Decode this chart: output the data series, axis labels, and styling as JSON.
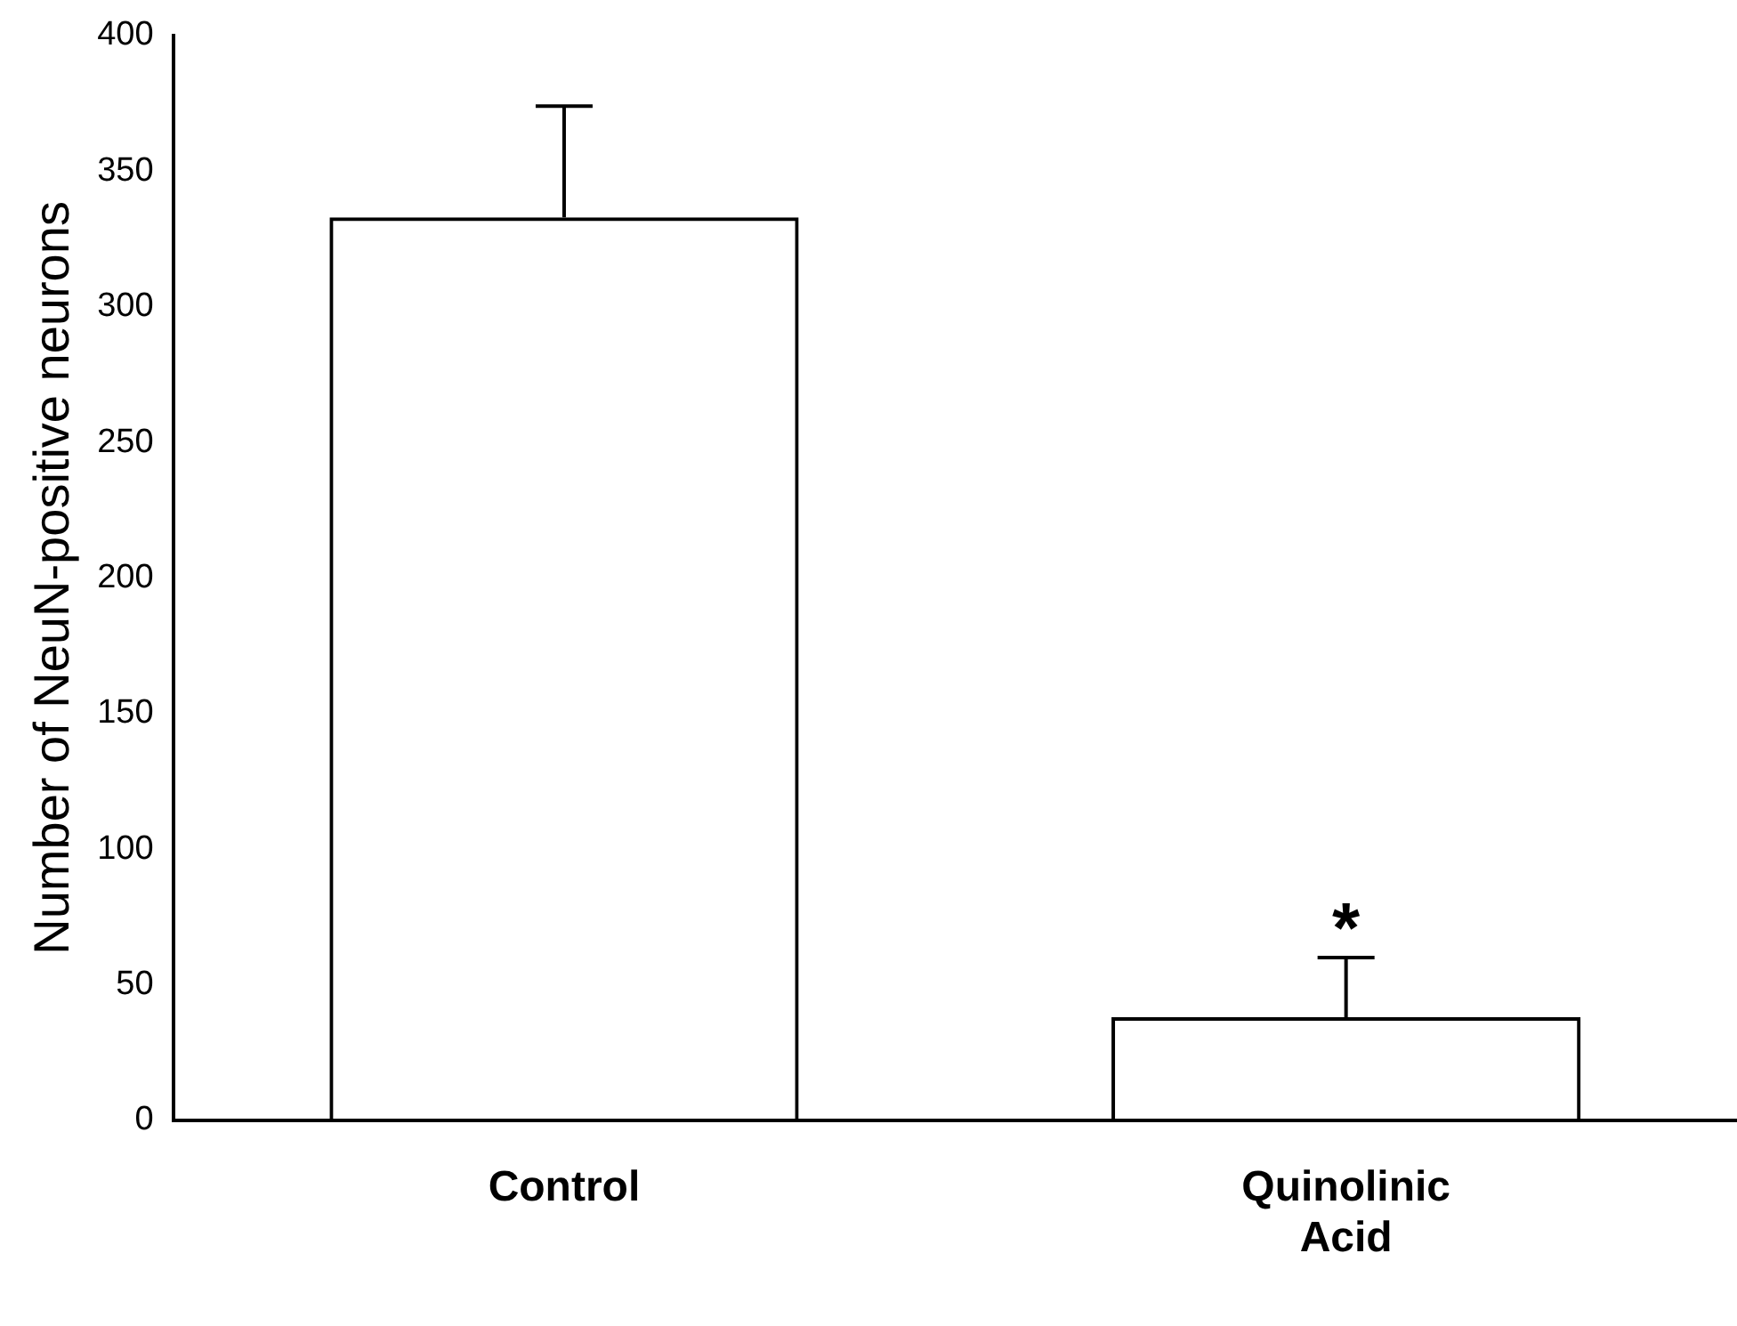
{
  "chart_data": {
    "type": "bar",
    "ylabel": "Number of NeuN-positive neurons",
    "categories": [
      "Control",
      "Quinolinic Acid"
    ],
    "values": [
      333,
      38
    ],
    "color": "#000000",
    "errors": [
      [
        333,
        374
      ],
      [
        38,
        60
      ]
    ],
    "ylim": [
      0,
      400
    ],
    "yticks": [
      0,
      50,
      100,
      150,
      200,
      250,
      300,
      350,
      400
    ],
    "grid": false,
    "legend": false,
    "annotations": [
      {
        "text": "*",
        "x": "Quinolinic Acid",
        "y": 60
      }
    ]
  }
}
